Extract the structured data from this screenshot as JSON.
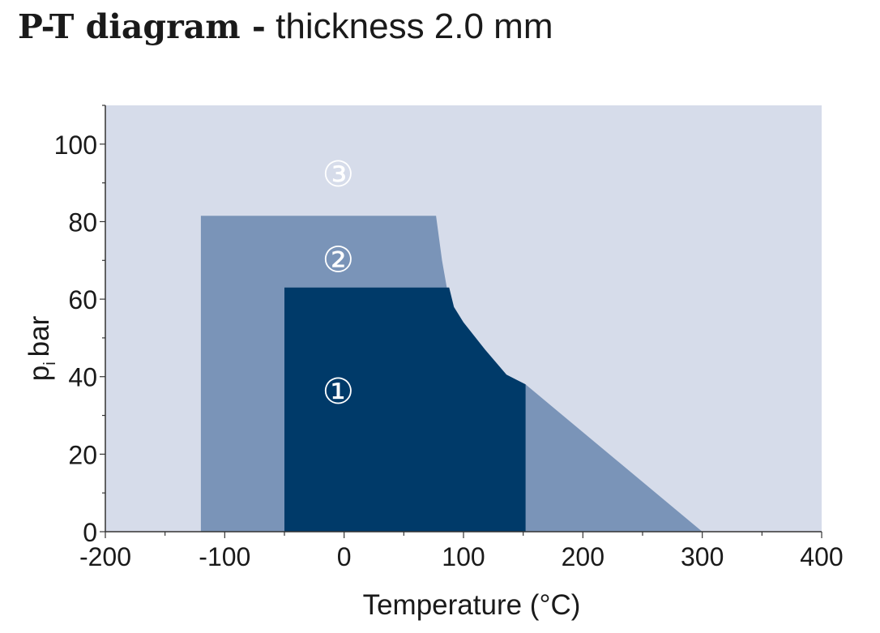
{
  "title": {
    "bold": "P-T diagram -",
    "light": "thickness 2.0 mm"
  },
  "chart_data": {
    "type": "area",
    "xlabel": "Temperature (°C)",
    "ylabel_main": "p",
    "ylabel_sub": "i",
    "ylabel_unit": "bar",
    "xlim": [
      -200,
      400
    ],
    "ylim": [
      0,
      110
    ],
    "x_ticks": [
      -200,
      -100,
      0,
      100,
      200,
      300,
      400
    ],
    "y_ticks": [
      0,
      20,
      40,
      60,
      80,
      100
    ],
    "grid": false,
    "colors": {
      "background": "#d6dcea",
      "zone2": "#7a94b8",
      "zone1": "#003a69",
      "marker": "#ffffff"
    },
    "regions": [
      {
        "label": "③",
        "marker_at": [
          -5,
          92
        ],
        "fill": "background"
      },
      {
        "label": "②",
        "marker_at": [
          -5,
          70
        ],
        "fill": "zone2",
        "points": [
          [
            -120,
            0
          ],
          [
            -120,
            81.5
          ],
          [
            77,
            81.5
          ],
          [
            82,
            70
          ],
          [
            86,
            63
          ],
          [
            90,
            58
          ],
          [
            100,
            54
          ],
          [
            118,
            47
          ],
          [
            136,
            40.5
          ],
          [
            152,
            38
          ],
          [
            300,
            0
          ]
        ]
      },
      {
        "label": "①",
        "marker_at": [
          -5,
          36
        ],
        "fill": "zone1",
        "points": [
          [
            -50,
            0
          ],
          [
            -50,
            63
          ],
          [
            88,
            63
          ],
          [
            92,
            58
          ],
          [
            100,
            54
          ],
          [
            118,
            47
          ],
          [
            136,
            40.5
          ],
          [
            152,
            38
          ],
          [
            152,
            0
          ]
        ]
      }
    ]
  }
}
